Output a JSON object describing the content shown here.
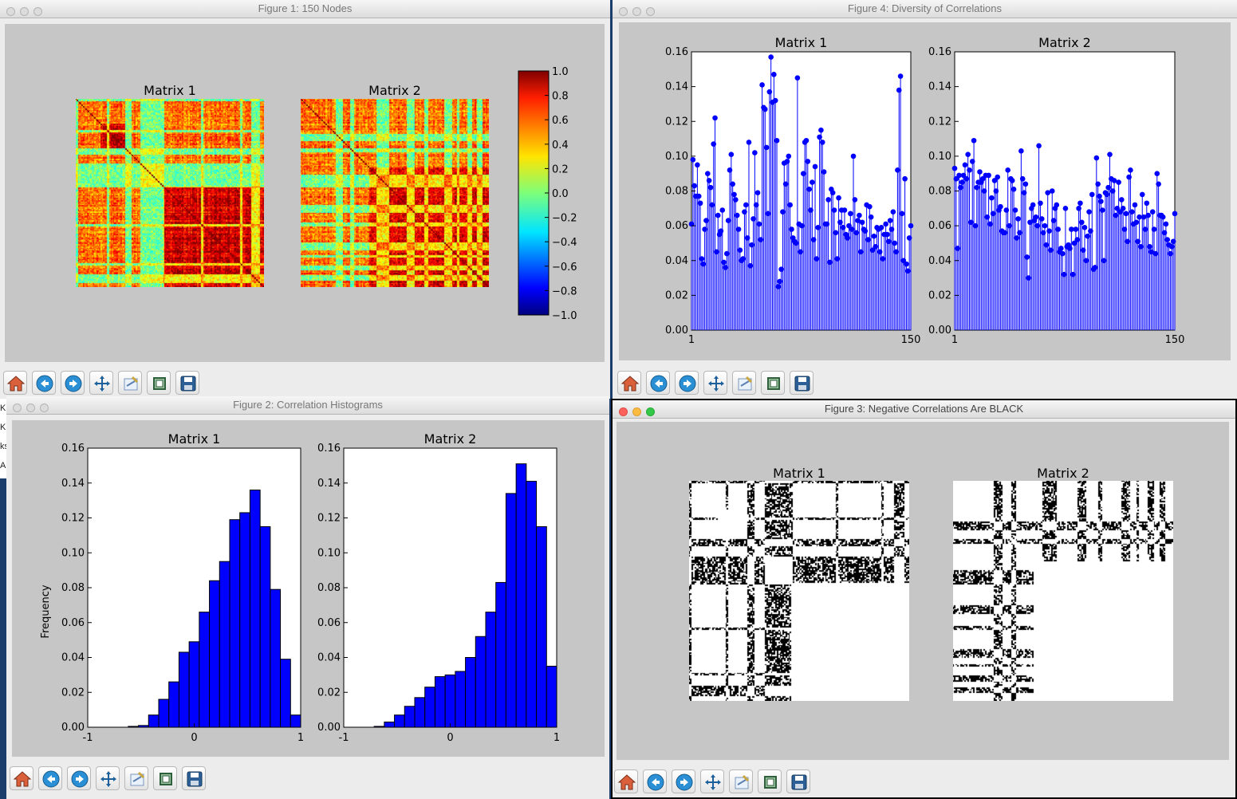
{
  "desktop": {
    "side_text": [
      "Ki",
      "Kr",
      "ks",
      "Al"
    ]
  },
  "windows": {
    "fig1": {
      "title": "Figure 1: 150 Nodes"
    },
    "fig2": {
      "title": "Figure 2: Correlation Histograms"
    },
    "fig3": {
      "title": "Figure 3: Negative Correlations Are BLACK"
    },
    "fig4": {
      "title": "Figure 4: Diversity of Correlations"
    }
  },
  "toolbar": {
    "buttons": [
      "home-icon",
      "back-icon",
      "forward-icon",
      "pan-icon",
      "subplots-icon",
      "zoom-icon",
      "save-icon"
    ]
  },
  "chart_data": [
    {
      "figure": "Figure 1: 150 Nodes",
      "type": "heatmap",
      "panels": [
        {
          "title": "Matrix 1"
        },
        {
          "title": "Matrix 2"
        }
      ],
      "nodes": 150,
      "colorbar": {
        "min": -1.0,
        "max": 1.0,
        "ticks": [
          "1.0",
          "0.8",
          "0.6",
          "0.4",
          "0.2",
          "0.0",
          "−0.2",
          "−0.4",
          "−0.6",
          "−0.8",
          "−1.0"
        ],
        "colormap": "jet"
      }
    },
    {
      "figure": "Figure 2: Correlation Histograms",
      "type": "bar",
      "ylabel": "Frequency",
      "xlim": [
        -1,
        1
      ],
      "ylim": [
        0,
        0.16
      ],
      "xticks": [
        "-1",
        "0",
        "1"
      ],
      "yticks": [
        "0.00",
        "0.02",
        "0.04",
        "0.06",
        "0.08",
        "0.10",
        "0.12",
        "0.14",
        "0.16"
      ],
      "bar_color": "#0000ff",
      "series": [
        {
          "panel": "Matrix 1",
          "values": [
            0,
            0,
            0,
            0,
            0.0005,
            0.001,
            0.007,
            0.016,
            0.026,
            0.043,
            0.049,
            0.066,
            0.084,
            0.095,
            0.119,
            0.123,
            0.136,
            0.115,
            0.079,
            0.039,
            0.007
          ]
        },
        {
          "panel": "Matrix 2",
          "values": [
            0,
            0,
            0,
            0.0005,
            0.003,
            0.007,
            0.012,
            0.017,
            0.023,
            0.029,
            0.03,
            0.032,
            0.04,
            0.052,
            0.066,
            0.083,
            0.134,
            0.151,
            0.141,
            0.115,
            0.035
          ]
        }
      ]
    },
    {
      "figure": "Figure 3: Negative Correlations Are BLACK",
      "type": "heatmap",
      "panels": [
        {
          "title": "Matrix 1"
        },
        {
          "title": "Matrix 2"
        }
      ],
      "colors": {
        "negative": "#000000",
        "positive": "#ffffff"
      }
    },
    {
      "figure": "Figure 4: Diversity of Correlations",
      "type": "scatter",
      "style": "stem",
      "xlim": [
        1,
        150
      ],
      "ylim": [
        0,
        0.16
      ],
      "xticks": [
        "1",
        "150"
      ],
      "yticks": [
        "0.00",
        "0.02",
        "0.04",
        "0.06",
        "0.08",
        "0.10",
        "0.12",
        "0.14",
        "0.16"
      ],
      "marker_color": "#0000ff",
      "series": [
        {
          "panel": "Matrix 1",
          "values": [
            0.061,
            0.098,
            0.083,
            0.077,
            0.095,
            0.077,
            0.073,
            0.041,
            0.038,
            0.058,
            0.063,
            0.09,
            0.086,
            0.082,
            0.072,
            0.107,
            0.122,
            0.045,
            0.066,
            0.055,
            0.057,
            0.069,
            0.039,
            0.036,
            0.044,
            0.063,
            0.092,
            0.101,
            0.084,
            0.078,
            0.075,
            0.066,
            0.058,
            0.046,
            0.04,
            0.041,
            0.068,
            0.072,
            0.053,
            0.108,
            0.037,
            0.049,
            0.064,
            0.102,
            0.072,
            0.079,
            0.061,
            0.052,
            0.141,
            0.128,
            0.127,
            0.105,
            0.067,
            0.137,
            0.157,
            0.131,
            0.147,
            0.132,
            0.109,
            0.025,
            0.028,
            0.035,
            0.068,
            0.096,
            0.084,
            0.097,
            0.1,
            0.072,
            0.058,
            0.053,
            0.051,
            0.05,
            0.145,
            0.061,
            0.045,
            0.06,
            0.09,
            0.108,
            0.109,
            0.097,
            0.081,
            0.069,
            0.085,
            0.052,
            0.094,
            0.041,
            0.059,
            0.111,
            0.115,
            0.108,
            0.091,
            0.061,
            0.061,
            0.075,
            0.039,
            0.081,
            0.079,
            0.069,
            0.056,
            0.041,
            0.076,
            0.062,
            0.069,
            0.059,
            0.069,
            0.055,
            0.053,
            0.06,
            0.067,
            0.058,
            0.1,
            0.075,
            0.056,
            0.063,
            0.066,
            0.045,
            0.062,
            0.058,
            0.057,
            0.072,
            0.052,
            0.071,
            0.065,
            0.046,
            0.054,
            0.048,
            0.059,
            0.058,
            0.045,
            0.059,
            0.041,
            0.055,
            0.061,
            0.055,
            0.051,
            0.063,
            0.058,
            0.068,
            0.05,
            0.045,
            0.092,
            0.138,
            0.146,
            0.067,
            0.04,
            0.087,
            0.038,
            0.034,
            0.053,
            0.06
          ]
        },
        {
          "panel": "Matrix 2",
          "values": [
            0.093,
            0.087,
            0.047,
            0.089,
            0.082,
            0.085,
            0.089,
            0.095,
            0.087,
            0.101,
            0.092,
            0.062,
            0.097,
            0.109,
            0.06,
            0.082,
            0.085,
            0.091,
            0.085,
            0.087,
            0.08,
            0.089,
            0.065,
            0.089,
            0.061,
            0.076,
            0.067,
            0.086,
            0.08,
            0.088,
            0.069,
            0.071,
            0.057,
            0.056,
            0.056,
            0.069,
            0.092,
            0.06,
            0.087,
            0.086,
            0.081,
            0.069,
            0.053,
            0.064,
            0.056,
            0.103,
            0.087,
            0.079,
            0.084,
            0.042,
            0.03,
            0.062,
            0.07,
            0.072,
            0.063,
            0.065,
            0.06,
            0.106,
            0.073,
            0.064,
            0.056,
            0.06,
            0.049,
            0.079,
            0.057,
            0.046,
            0.08,
            0.063,
            0.07,
            0.072,
            0.058,
            0.045,
            0.047,
            0.044,
            0.032,
            0.07,
            0.048,
            0.049,
            0.047,
            0.058,
            0.032,
            0.05,
            0.058,
            0.052,
            0.07,
            0.073,
            0.062,
            0.046,
            0.059,
            0.04,
            0.054,
            0.068,
            0.057,
            0.078,
            0.035,
            0.036,
            0.099,
            0.084,
            0.077,
            0.074,
            0.069,
            0.04,
            0.079,
            0.078,
            0.082,
            0.101,
            0.087,
            0.08,
            0.086,
            0.066,
            0.07,
            0.085,
            0.068,
            0.075,
            0.07,
            0.058,
            0.067,
            0.051,
            0.088,
            0.092,
            0.068,
            0.061,
            0.072,
            0.062,
            0.051,
            0.065,
            0.048,
            0.078,
            0.065,
            0.058,
            0.073,
            0.066,
            0.048,
            0.045,
            0.068,
            0.058,
            0.044,
            0.09,
            0.084,
            0.066,
            0.066,
            0.065,
            0.056,
            0.061,
            0.052,
            0.049,
            0.044,
            0.048,
            0.051,
            0.067
          ]
        }
      ]
    }
  ]
}
